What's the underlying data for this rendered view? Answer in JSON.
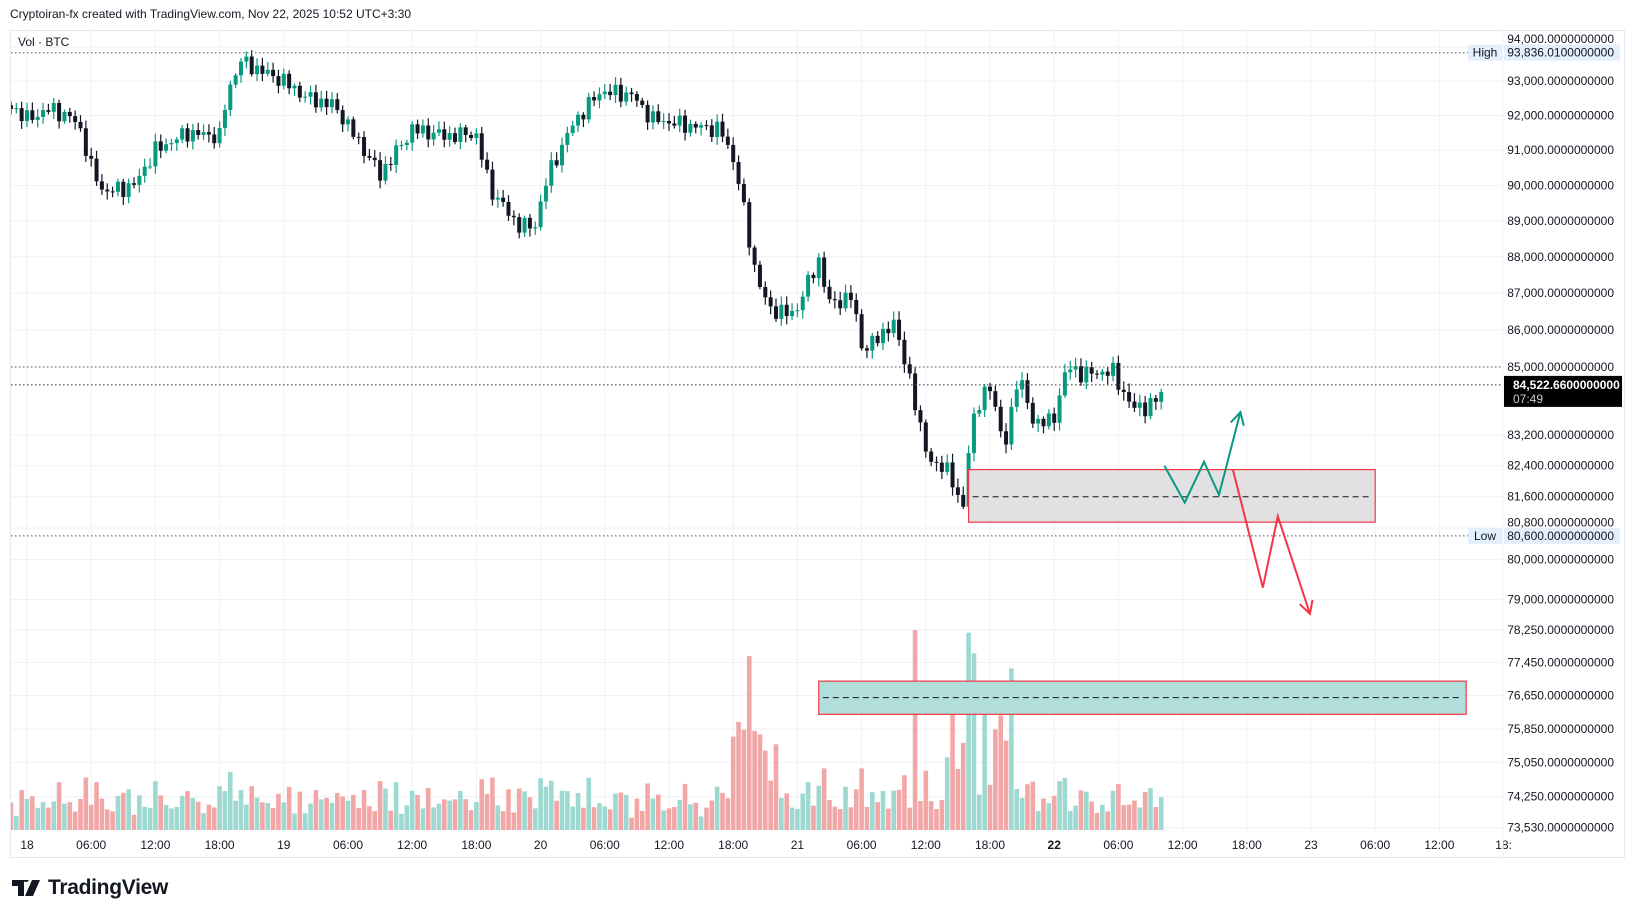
{
  "header": {
    "attribution": "Cryptoiran-fx created with TradingView.com, Nov 22, 2025 10:52 UTC+3:30"
  },
  "legend": {
    "label": "Vol · BTC"
  },
  "logo": {
    "text": "TradingView"
  },
  "colors": {
    "up": "#089981",
    "down": "#131722",
    "vol_up": "#9dd8d1",
    "vol_down": "#f2a7a7",
    "zone_red": "#f23645",
    "zone_gray": "#e1e1e1",
    "zone_teal": "#b2dfdb",
    "arrow_green": "#089981",
    "arrow_red": "#f23645"
  },
  "chart_data": {
    "type": "candlestick",
    "symbol": "BTC",
    "interval": "30m",
    "scale": "log",
    "ylim": [
      73530,
      94000
    ],
    "high": {
      "label": "High",
      "value": "93,836.0100000000",
      "price": 93836.01
    },
    "low": {
      "label": "Low",
      "value": "80,600.0000000000",
      "price": 80600
    },
    "last": {
      "value": "84,522.6600000000",
      "countdown": "07:49",
      "price": 84522.66
    },
    "ref_line_price": 85000,
    "x_start": "Nov 17 22:00",
    "price_path_hourly": [
      [
        0.4,
        92300
      ],
      [
        2,
        91900
      ],
      [
        4.3,
        92200
      ],
      [
        6.8,
        91800
      ],
      [
        8,
        90500
      ],
      [
        9.2,
        89800
      ],
      [
        12,
        90000
      ],
      [
        14,
        91000
      ],
      [
        17,
        91500
      ],
      [
        20,
        91400
      ],
      [
        20.7,
        92600
      ],
      [
        21.9,
        93600
      ],
      [
        23.9,
        93300
      ],
      [
        26,
        93000
      ],
      [
        28.2,
        92500
      ],
      [
        30.7,
        92300
      ],
      [
        33.1,
        91200
      ],
      [
        35,
        90300
      ],
      [
        38,
        91600
      ],
      [
        41.4,
        91400
      ],
      [
        43.9,
        91500
      ],
      [
        45.3,
        89900
      ],
      [
        47.8,
        88900
      ],
      [
        49.4,
        88800
      ],
      [
        50.7,
        90300
      ],
      [
        53.1,
        91800
      ],
      [
        55.6,
        92700
      ],
      [
        58.5,
        92600
      ],
      [
        60.4,
        91900
      ],
      [
        63.9,
        91700
      ],
      [
        66.8,
        91600
      ],
      [
        68.2,
        90600
      ],
      [
        69.9,
        87800
      ],
      [
        71.2,
        86600
      ],
      [
        73.6,
        86400
      ],
      [
        76,
        87900
      ],
      [
        77,
        86700
      ],
      [
        79,
        86900
      ],
      [
        80.2,
        85400
      ],
      [
        82.9,
        86200
      ],
      [
        84.3,
        85000
      ],
      [
        85.3,
        83500
      ],
      [
        86.8,
        82300
      ],
      [
        88.2,
        82400
      ],
      [
        89.4,
        81000
      ],
      [
        90.2,
        83500
      ],
      [
        92.1,
        84600
      ],
      [
        93.3,
        82700
      ],
      [
        94.6,
        84800
      ],
      [
        96,
        83600
      ],
      [
        97.8,
        83500
      ],
      [
        99.2,
        85000
      ],
      [
        100.9,
        84800
      ],
      [
        103.4,
        84900
      ],
      [
        105.3,
        83900
      ],
      [
        107.3,
        84000
      ],
      [
        108.4,
        84522.66
      ]
    ],
    "volume_spike": {
      "hour": 85,
      "relative": 1.0
    },
    "price_axis": [
      {
        "price": 94000,
        "label": "94,000.0000000000"
      },
      {
        "price": 93000,
        "label": "93,000.0000000000"
      },
      {
        "price": 92000,
        "label": "92,000.0000000000"
      },
      {
        "price": 91000,
        "label": "91,000.0000000000"
      },
      {
        "price": 90000,
        "label": "90,000.0000000000"
      },
      {
        "price": 89000,
        "label": "89,000.0000000000"
      },
      {
        "price": 88000,
        "label": "88,000.0000000000"
      },
      {
        "price": 87000,
        "label": "87,000.0000000000"
      },
      {
        "price": 86000,
        "label": "86,000.0000000000"
      },
      {
        "price": 85000,
        "label": "85,000.0000000000"
      },
      {
        "price": 83200,
        "label": "83,200.0000000000"
      },
      {
        "price": 82400,
        "label": "82,400.0000000000"
      },
      {
        "price": 81600,
        "label": "81,600.0000000000"
      },
      {
        "price": 80800,
        "label": "80,800.0000000000"
      },
      {
        "price": 80000,
        "label": "80,000.0000000000"
      },
      {
        "price": 79000,
        "label": "79,000.0000000000"
      },
      {
        "price": 78250,
        "label": "78,250.0000000000"
      },
      {
        "price": 77450,
        "label": "77,450.0000000000"
      },
      {
        "price": 76650,
        "label": "76,650.0000000000"
      },
      {
        "price": 75850,
        "label": "75,850.0000000000"
      },
      {
        "price": 75050,
        "label": "75,050.0000000000"
      },
      {
        "price": 74250,
        "label": "74,250.0000000000"
      },
      {
        "price": 73530,
        "label": "73,530.0000000000"
      }
    ],
    "time_axis": [
      "18",
      "06:00",
      "12:00",
      "18:00",
      "19",
      "06:00",
      "12:00",
      "18:00",
      "20",
      "06:00",
      "12:00",
      "18:00",
      "21",
      "06:00",
      "12:00",
      "18:00",
      "22",
      "06:00",
      "12:00",
      "18:00",
      "23",
      "06:00",
      "12:00",
      "18:"
    ],
    "time_axis_bold": [
      16
    ],
    "drawings": {
      "gray_zone": {
        "from_hour": 90,
        "to_hour": 128,
        "top": 82300,
        "bottom": 80950,
        "mid": 81600
      },
      "teal_zone": {
        "from_hour": 76,
        "to_hour": 136.5,
        "top": 77000,
        "bottom": 76200,
        "mid": 76600
      },
      "green_path": [
        [
          108.3,
          82400
        ],
        [
          110.2,
          81450
        ],
        [
          112,
          82500
        ],
        [
          113.4,
          81650
        ],
        [
          115.4,
          83800
        ]
      ],
      "red_path": [
        [
          114.7,
          82300
        ],
        [
          117.5,
          79300
        ],
        [
          118.9,
          81100
        ],
        [
          121.9,
          78650
        ]
      ]
    }
  }
}
